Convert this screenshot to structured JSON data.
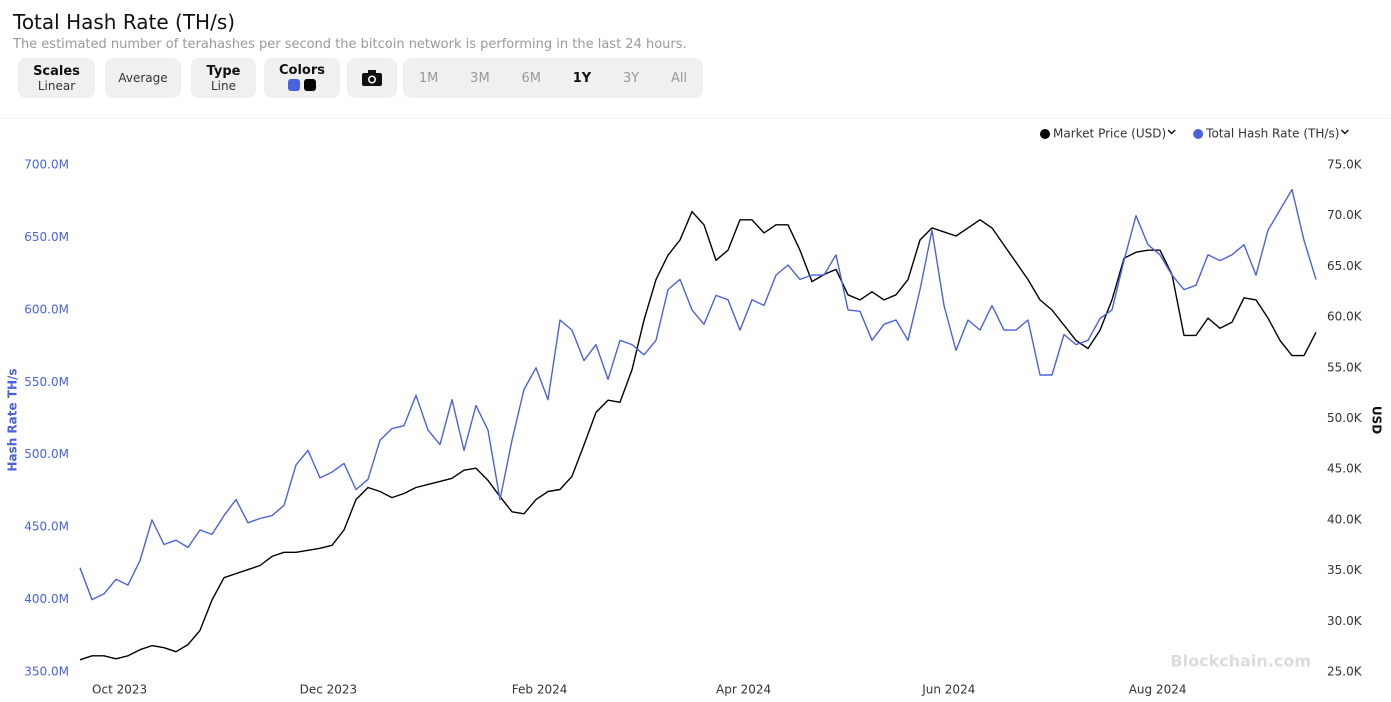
{
  "header": {
    "title": "Total Hash Rate (TH/s)",
    "subtitle": "The estimated number of terahashes per second the bitcoin network is performing in the last 24 hours."
  },
  "controls": {
    "scales": {
      "label": "Scales",
      "value": "Linear"
    },
    "average": "Average",
    "type": {
      "label": "Type",
      "value": "Line"
    },
    "colors": "Colors",
    "ranges": [
      "1M",
      "3M",
      "6M",
      "1Y",
      "3Y",
      "All"
    ],
    "selected_range": "1Y"
  },
  "chart_data": {
    "type": "line",
    "y_label": "Hash Rate TH/s",
    "y2_label": "USD",
    "watermark": "Blockchain.com",
    "xlim": [
      0,
      103
    ],
    "xticks": [
      {
        "value": 3.3,
        "label": "Oct 2023"
      },
      {
        "value": 20.7,
        "label": "Dec 2023"
      },
      {
        "value": 38.3,
        "label": "Feb 2024"
      },
      {
        "value": 55.3,
        "label": "Apr 2024"
      },
      {
        "value": 72.4,
        "label": "Jun 2024"
      },
      {
        "value": 89.8,
        "label": "Aug 2024"
      }
    ],
    "ylim": [
      350000000.0,
      700000000.0
    ],
    "yticks": [
      {
        "value": 350000000.0,
        "label": "350.0M"
      },
      {
        "value": 400000000.0,
        "label": "400.0M"
      },
      {
        "value": 450000000.0,
        "label": "450.0M"
      },
      {
        "value": 500000000.0,
        "label": "500.0M"
      },
      {
        "value": 550000000.0,
        "label": "550.0M"
      },
      {
        "value": 600000000.0,
        "label": "600.0M"
      },
      {
        "value": 650000000.0,
        "label": "650.0M"
      },
      {
        "value": 700000000.0,
        "label": "700.0M"
      }
    ],
    "y2lim": [
      25000,
      75000
    ],
    "y2ticks": [
      {
        "value": 25000,
        "label": "25.0K"
      },
      {
        "value": 30000,
        "label": "30.0K"
      },
      {
        "value": 35000,
        "label": "35.0K"
      },
      {
        "value": 40000,
        "label": "40.0K"
      },
      {
        "value": 45000,
        "label": "45.0K"
      },
      {
        "value": 50000,
        "label": "50.0K"
      },
      {
        "value": 55000,
        "label": "55.0K"
      },
      {
        "value": 60000,
        "label": "60.0K"
      },
      {
        "value": 65000,
        "label": "65.0K"
      },
      {
        "value": 70000,
        "label": "70.0K"
      },
      {
        "value": 75000,
        "label": "75.0K"
      }
    ],
    "series": [
      {
        "name": "Market Price (USD)",
        "color": "#000000",
        "axis": "y2",
        "values": [
          26200,
          26600,
          26600,
          26300,
          26600,
          27200,
          27600,
          27400,
          27000,
          27700,
          29100,
          32100,
          34300,
          34700,
          35100,
          35500,
          36400,
          36800,
          36800,
          37000,
          37200,
          37500,
          39000,
          42000,
          43200,
          42800,
          42200,
          42600,
          43200,
          43500,
          43800,
          44100,
          44900,
          45100,
          43900,
          42300,
          40800,
          40600,
          42000,
          42800,
          43000,
          44300,
          47400,
          50600,
          51800,
          51600,
          54800,
          59700,
          63700,
          66100,
          67600,
          70400,
          69100,
          65600,
          66600,
          69600,
          69600,
          68300,
          69100,
          69100,
          66600,
          63500,
          64200,
          64700,
          62200,
          61700,
          62500,
          61700,
          62200,
          63700,
          67600,
          68800,
          68400,
          68000,
          68800,
          69600,
          68800,
          67100,
          65400,
          63700,
          61700,
          60700,
          59200,
          57700,
          56900,
          58700,
          61700,
          65800,
          66400,
          66600,
          66600,
          64200,
          58200,
          58200,
          59900,
          58900,
          59500,
          61900,
          61700,
          59900,
          57700,
          56200,
          56200,
          58500
        ]
      },
      {
        "name": "Total Hash Rate (TH/s)",
        "color": "#4a62de",
        "values": [
          422000000.0,
          400000000.0,
          404000000.0,
          414000000.0,
          410000000.0,
          427000000.0,
          455000000.0,
          438000000.0,
          441000000.0,
          436000000.0,
          448000000.0,
          445000000.0,
          458000000.0,
          469000000.0,
          453000000.0,
          456000000.0,
          458000000.0,
          465000000.0,
          493000000.0,
          503000000.0,
          484000000.0,
          488000000.0,
          494000000.0,
          476000000.0,
          483000000.0,
          510000000.0,
          518000000.0,
          520000000.0,
          541000000.0,
          517000000.0,
          507000000.0,
          538000000.0,
          503000000.0,
          534000000.0,
          517000000.0,
          469000000.0,
          510000000.0,
          545000000.0,
          560000000.0,
          538000000.0,
          593000000.0,
          586000000.0,
          565000000.0,
          576000000.0,
          552000000.0,
          579000000.0,
          576000000.0,
          569000000.0,
          579000000.0,
          614000000.0,
          621000000.0,
          600000000.0,
          590000000.0,
          610000000.0,
          607000000.0,
          586000000.0,
          607000000.0,
          603000000.0,
          624000000.0,
          631000000.0,
          621000000.0,
          624000000.0,
          624000000.0,
          638000000.0,
          600000000.0,
          599000000.0,
          579000000.0,
          590000000.0,
          593000000.0,
          579000000.0,
          614000000.0,
          655000000.0,
          603000000.0,
          572000000.0,
          593000000.0,
          586000000.0,
          603000000.0,
          586000000.0,
          586000000.0,
          593000000.0,
          555000000.0,
          555000000.0,
          583000000.0,
          576000000.0,
          579000000.0,
          594000000.0,
          600000000.0,
          634000000.0,
          665000000.0,
          645000000.0,
          638000000.0,
          624000000.0,
          614000000.0,
          617000000.0,
          638000000.0,
          634000000.0,
          638000000.0,
          645000000.0,
          624000000.0,
          655000000.0,
          669000000.0,
          683000000.0,
          648000000.0,
          621000000.0
        ]
      }
    ]
  }
}
